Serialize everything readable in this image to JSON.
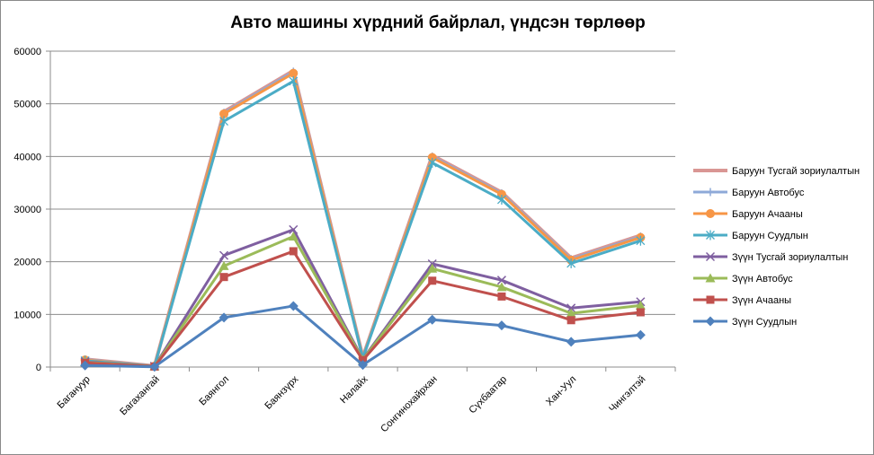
{
  "chart_data": {
    "type": "line",
    "title": "Авто машины хүрдний байрлал, үндсэн төрлөөр",
    "xlabel": "",
    "ylabel": "",
    "ylim": [
      0,
      60000
    ],
    "yticks": [
      "0",
      "10000",
      "20000",
      "30000",
      "40000",
      "50000",
      "60000"
    ],
    "grid": "horizontal",
    "legend_position": "right",
    "categories": [
      "Багануур",
      "Багахангай",
      "Баянгол",
      "Баянзүрх",
      "Налайх",
      "Сонгинохайрхан",
      "Сүхбаатар",
      "Хан-Уул",
      "Чингэлтэй"
    ],
    "series": [
      {
        "name": "Баруун Тусгай зориулалтын",
        "color": "#d99694",
        "marker": "none",
        "values": [
          1500,
          200,
          48500,
          56300,
          1900,
          40200,
          33200,
          20700,
          25000
        ]
      },
      {
        "name": "Баруун Автобус",
        "color": "#8ea9d8",
        "marker": "plus",
        "values": [
          1450,
          200,
          48300,
          56100,
          1850,
          40000,
          33000,
          20500,
          24800
        ]
      },
      {
        "name": "Баруун Ачааны",
        "color": "#f79646",
        "marker": "circle",
        "values": [
          1350,
          180,
          48100,
          55800,
          1800,
          39800,
          32800,
          20300,
          24600
        ]
      },
      {
        "name": "Баруун Суудлын",
        "color": "#4bacc6",
        "marker": "star",
        "values": [
          1200,
          150,
          46700,
          54300,
          1700,
          38800,
          31800,
          19700,
          24000
        ]
      },
      {
        "name": "Зүүн Тусгай зориулалтын",
        "color": "#7f5fa0",
        "marker": "x",
        "values": [
          1000,
          150,
          21200,
          26100,
          1500,
          19600,
          16500,
          11200,
          12400
        ]
      },
      {
        "name": "Зүүн Автобус",
        "color": "#9bbb59",
        "marker": "triangle",
        "values": [
          900,
          130,
          19200,
          24800,
          1400,
          18700,
          15200,
          10200,
          11700
        ]
      },
      {
        "name": "Зүүн Ачааны",
        "color": "#c0504d",
        "marker": "square",
        "values": [
          800,
          100,
          17100,
          22000,
          1300,
          16400,
          13400,
          8900,
          10400
        ]
      },
      {
        "name": "Зүүн Суудлын",
        "color": "#4f81bd",
        "marker": "diamond",
        "values": [
          300,
          50,
          9400,
          11600,
          400,
          9000,
          7900,
          4800,
          6100
        ]
      }
    ]
  }
}
